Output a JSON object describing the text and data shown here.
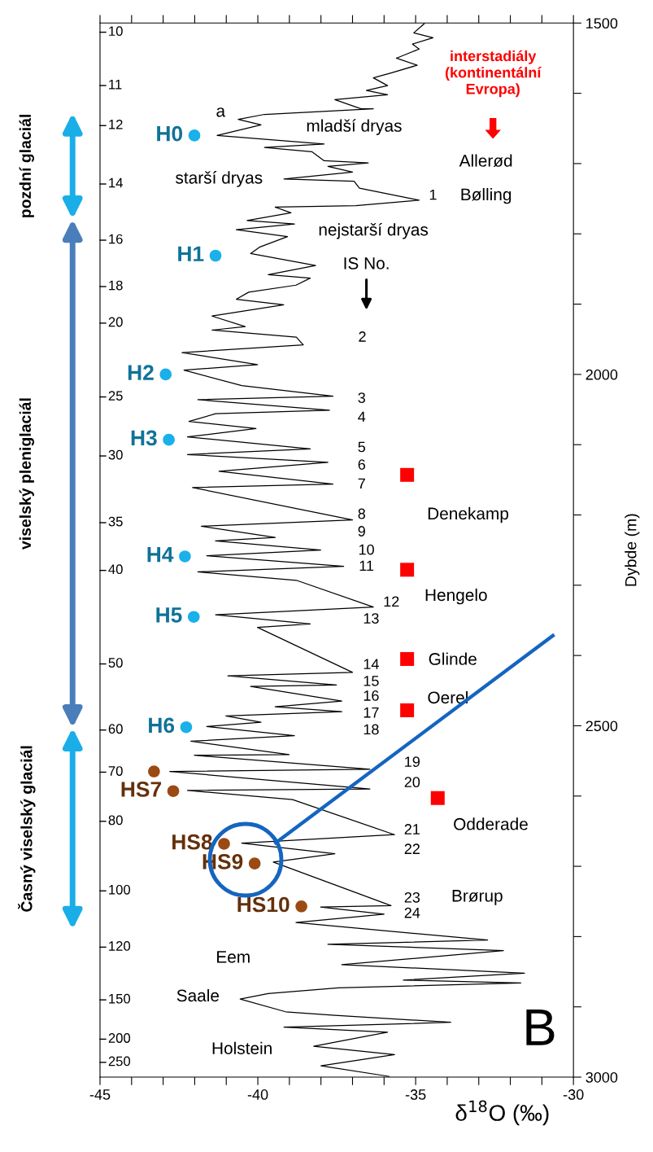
{
  "chart_data": {
    "type": "line",
    "title": "B",
    "orientation": "horizontal",
    "xlabel": "δ$^{18}$O (‰)",
    "ylabel": "Dybde (m)",
    "xlim": [
      -45,
      -30
    ],
    "xticks": [
      -45,
      {
        "value": -44,
        "label": null
      },
      {
        "value": -43,
        "label": null
      },
      {
        "value": -42,
        "label": null
      },
      {
        "value": -41,
        "label": null
      },
      -40,
      {
        "value": -39,
        "label": null
      },
      {
        "value": -38,
        "label": null
      },
      {
        "value": -37,
        "label": null
      },
      {
        "value": -36,
        "label": null
      },
      -35,
      {
        "value": -34,
        "label": null
      },
      {
        "value": -33,
        "label": null
      },
      {
        "value": -32,
        "label": null
      },
      {
        "value": -31,
        "label": null
      },
      -30
    ],
    "ylim": [
      3000,
      1500
    ],
    "yticks": [
      1500,
      {
        "value": 1600,
        "label": null
      },
      {
        "value": 1700,
        "label": null
      },
      {
        "value": 1800,
        "label": null
      },
      {
        "value": 1900,
        "label": null
      },
      2000,
      {
        "value": 2100,
        "label": null
      },
      {
        "value": 2200,
        "label": null
      },
      {
        "value": 2300,
        "label": null
      },
      {
        "value": 2400,
        "label": null
      },
      2500,
      {
        "value": 2600,
        "label": null
      },
      {
        "value": 2700,
        "label": null
      },
      {
        "value": 2800,
        "label": null
      },
      {
        "value": 2900,
        "label": null
      },
      3000
    ],
    "grid": false,
    "legend": false,
    "series": [
      {
        "color": "#000000",
        "marker": "none",
        "line_style": "solid",
        "x": [
          1501,
          1514,
          1521,
          1530,
          1537,
          1550,
          1560,
          1571,
          1578,
          1589,
          1596,
          1602,
          1609,
          1622,
          1622,
          1630,
          1637,
          1645,
          1660,
          1672,
          1677,
          1683,
          1696,
          1699,
          1704,
          1712,
          1722,
          1725,
          1735,
          1750,
          1752,
          1760,
          1762,
          1770,
          1781,
          1786,
          1794,
          1804,
          1819,
          1828,
          1845,
          1858,
          1863,
          1873,
          1883,
          1893,
          1901,
          1917,
          1932,
          1937,
          1947,
          1958,
          1969,
          1986,
          1994,
          2016,
          2031,
          2036,
          2051,
          2056,
          2067,
          2077,
          2089,
          2106,
          2114,
          2125,
          2138,
          2156,
          2161,
          2207,
          2216,
          2232,
          2237,
          2250,
          2258,
          2273,
          2281,
          2293,
          2331,
          2342,
          2355,
          2360,
          2424,
          2429,
          2442,
          2444,
          2465,
          2473,
          2480,
          2486,
          2495,
          2501,
          2514,
          2522,
          2541,
          2542,
          2562,
          2565,
          2590,
          2592,
          2605,
          2655,
          2667,
          2682,
          2694,
          2756,
          2758,
          2768,
          2780,
          2805,
          2811,
          2820,
          2840,
          2852,
          2862,
          2866,
          2873,
          2881,
          2889,
          2907,
          2912,
          2922,
          2929,
          2936,
          2956,
          2968,
          2984,
          2999
        ],
        "values": [
          -34.73,
          -35.06,
          -34.45,
          -35.1,
          -34.89,
          -35.61,
          -34.95,
          -35.78,
          -36.34,
          -35.89,
          -36.56,
          -35.89,
          -37.56,
          -36.73,
          -36.34,
          -39.79,
          -40.62,
          -39.9,
          -41.29,
          -37.9,
          -39.79,
          -38.29,
          -37.9,
          -36.5,
          -37.78,
          -37.0,
          -39.17,
          -36.95,
          -36.78,
          -35.12,
          -34.89,
          -36.9,
          -39.45,
          -38.95,
          -40.34,
          -38.84,
          -40.68,
          -39.06,
          -39.95,
          -40.23,
          -38.17,
          -39.67,
          -38.34,
          -38.79,
          -40.29,
          -40.68,
          -39.18,
          -41.45,
          -40.4,
          -41.45,
          -38.78,
          -38.56,
          -42.4,
          -40.01,
          -42.34,
          -40.51,
          -37.62,
          -41.9,
          -37.73,
          -41.34,
          -42.18,
          -40.06,
          -42.23,
          -38.34,
          -42.23,
          -37.78,
          -41.23,
          -37.62,
          -42.07,
          -37.0,
          -41.79,
          -39.45,
          -41.34,
          -38.01,
          -41.62,
          -37.28,
          -41.9,
          -38.78,
          -36.34,
          -41.34,
          -38.34,
          -40.01,
          -37.0,
          -40.95,
          -37.51,
          -40.23,
          -37.34,
          -39.45,
          -37.34,
          -41.01,
          -39.9,
          -41.62,
          -38.84,
          -42.12,
          -39.01,
          -42.01,
          -36.45,
          -42.79,
          -36.45,
          -42.23,
          -38.9,
          -35.67,
          -40.51,
          -37.56,
          -39.51,
          -35.78,
          -38.01,
          -36.0,
          -38.79,
          -32.72,
          -37.78,
          -32.22,
          -37.34,
          -31.55,
          -35.39,
          -31.67,
          -37.45,
          -39.67,
          -40.56,
          -39.12,
          -37.56,
          -33.89,
          -39.17,
          -35.89,
          -38.23,
          -35.67,
          -38.0,
          -35.84
        ]
      },
      {
        "type": "scatter",
        "color": "#1ab0ea",
        "marker": "circle",
        "x": [
          1660,
          1831,
          2000,
          2093,
          2259,
          2345,
          2502
        ],
        "values": [
          -42.01,
          -41.34,
          -42.92,
          -42.82,
          -42.31,
          -42.03,
          -42.27
        ],
        "value_labels": [
          "H0",
          "H1",
          "H2",
          "H3",
          "H4",
          "H5",
          "H6"
        ]
      },
      {
        "type": "scatter",
        "color": "#9a4a12",
        "marker": "circle",
        "x": [
          2565,
          2593,
          2668,
          2696,
          2757
        ],
        "values": [
          -43.29,
          -42.68,
          -41.07,
          -40.1,
          -38.62
        ],
        "value_labels": [
          null,
          "HS7",
          "HS8",
          "HS9",
          "HS10"
        ]
      },
      {
        "type": "scatter",
        "name": "interstadiály (kontinentální Evropa)",
        "color": "#ff0000",
        "marker": "square",
        "x": [
          2143,
          2278,
          2405,
          2478,
          2603
        ],
        "values": [
          -35.27,
          -35.27,
          -35.27,
          -35.27,
          -34.3
        ]
      }
    ],
    "annotations": [
      "a",
      "mladší dryas",
      "starší dryas",
      "Allerød",
      "1",
      "Bølling",
      "nejstarší dryas",
      "IS No.",
      "2",
      "3",
      "4",
      "5",
      "6",
      "7",
      "8",
      "9",
      "10",
      "11",
      "12",
      "13",
      "14",
      "15",
      "16",
      "17",
      "18",
      "19",
      "20",
      "21",
      "22",
      "23",
      "24",
      "Denekamp",
      "Hengelo",
      "Glinde",
      "Oerel",
      "Odderade",
      "Brørup",
      "Eem",
      "Saale",
      "Holstein",
      "pozdní glaciál",
      "viselský pleniglaciál",
      "Časný viselský glaciál",
      "10",
      "11",
      "12",
      "14",
      "16",
      "18",
      "20",
      "25",
      "30",
      "35",
      "40",
      "50",
      "60",
      "70",
      "80",
      "100",
      "120",
      "150",
      "200",
      "250"
    ]
  }
}
